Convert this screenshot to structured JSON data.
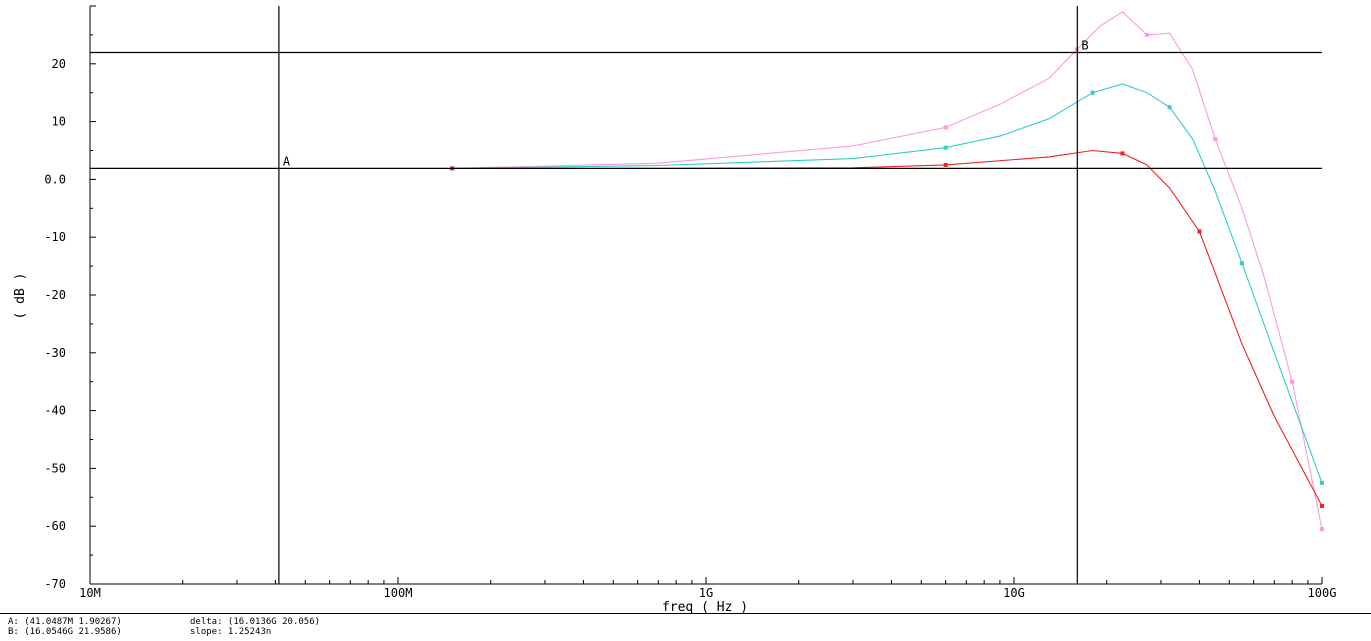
{
  "chart_data": {
    "type": "line",
    "xscale": "log",
    "xlim": [
      10000000,
      100000000000
    ],
    "ylim": [
      -70,
      30
    ],
    "xlabel": "freq ( Hz )",
    "ylabel": "( dB )",
    "x_ticks": [
      {
        "value": 10000000,
        "label": "10M"
      },
      {
        "value": 100000000,
        "label": "100M"
      },
      {
        "value": 1000000000,
        "label": "1G"
      },
      {
        "value": 10000000000,
        "label": "10G"
      },
      {
        "value": 100000000000,
        "label": "100G"
      }
    ],
    "y_ticks": [
      {
        "value": 20,
        "label": "20"
      },
      {
        "value": 10,
        "label": "10"
      },
      {
        "value": 0,
        "label": "0.0"
      },
      {
        "value": -10,
        "label": "-10"
      },
      {
        "value": -20,
        "label": "-20"
      },
      {
        "value": -30,
        "label": "-30"
      },
      {
        "value": -40,
        "label": "-40"
      },
      {
        "value": -50,
        "label": "-50"
      },
      {
        "value": -60,
        "label": "-60"
      },
      {
        "value": -70,
        "label": "-70"
      }
    ],
    "series": [
      {
        "color": "#ff99dd",
        "x": [
          150000000,
          700000000,
          3000000000,
          6000000000,
          9000000000,
          13000000000,
          16000000000,
          19000000000,
          22500000000,
          27000000000,
          32000000000,
          38000000000,
          45000000000,
          55000000000,
          65000000000,
          80000000000,
          100000000000
        ],
        "y": [
          1.9,
          2.8,
          5.8,
          9.0,
          13.0,
          17.5,
          22.5,
          26.5,
          29.0,
          25.0,
          25.3,
          19.0,
          7.0,
          -5.0,
          -17.0,
          -35.0,
          -60.5
        ]
      },
      {
        "color": "#33cccc",
        "x": [
          150000000,
          700000000,
          3000000000,
          6000000000,
          9000000000,
          13000000000,
          18000000000,
          22500000000,
          27000000000,
          32000000000,
          38000000000,
          45000000000,
          55000000000,
          70000000000,
          100000000000
        ],
        "y": [
          1.9,
          2.4,
          3.6,
          5.5,
          7.5,
          10.5,
          15.0,
          16.5,
          15.0,
          12.5,
          7.0,
          -2.0,
          -14.5,
          -30.0,
          -52.5
        ]
      },
      {
        "color": "#ee2222",
        "x": [
          150000000,
          700000000,
          3000000000,
          6000000000,
          13000000000,
          18000000000,
          22500000000,
          27000000000,
          32000000000,
          40000000000,
          55000000000,
          70000000000,
          100000000000
        ],
        "y": [
          1.9,
          1.9,
          2.0,
          2.5,
          3.9,
          5.0,
          4.5,
          2.5,
          -1.5,
          -9.0,
          -28.5,
          -41.0,
          -56.5
        ]
      }
    ],
    "markers": [
      {
        "name": "A",
        "x": 41048700,
        "y": 1.90267
      },
      {
        "name": "B",
        "x": 16054600000,
        "y": 21.9586
      }
    ]
  },
  "readout": {
    "marker_a": "A: (41.0487M 1.90267)",
    "marker_b": "B: (16.0546G 21.9586)",
    "delta": "delta: (16.0136G 20.056)",
    "slope": "slope: 1.25243n"
  }
}
